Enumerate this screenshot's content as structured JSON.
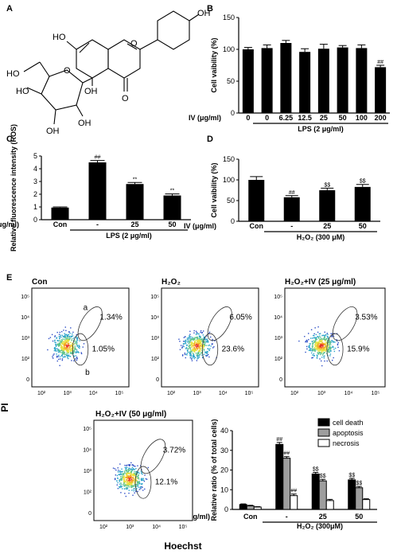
{
  "panels": {
    "A": "A",
    "B": "B",
    "C": "C",
    "D": "D",
    "E": "E"
  },
  "structure": {
    "labels": [
      "HO",
      "OH",
      "HO",
      "OH",
      "HO",
      "OH",
      "OH",
      "O",
      "O",
      "O"
    ]
  },
  "flow": {
    "title_con": "Con",
    "title_h2o2": "H₂O₂",
    "title_iv25": "H₂O₂+IV (25 μg/ml)",
    "title_iv50": "H₂O₂+IV (50 μg/ml)",
    "gate_a": "a",
    "gate_b": "b",
    "ticks": [
      "10⁵",
      "10⁴",
      "10³",
      "10²",
      "0",
      "10²",
      "10³",
      "10⁴",
      "10⁵"
    ],
    "pcts": {
      "con_a": "1.34%",
      "con_b": "1.05%",
      "h2o2_a": "6.05%",
      "h2o2_b": "23.6%",
      "iv25_a": "3.53%",
      "iv25_b": "15.9%",
      "iv50_a": "3.72%",
      "iv50_b": "12.1%"
    },
    "ylabel": "PI",
    "xlabel": "Hoechst"
  },
  "chart_data": [
    {
      "panel": "B",
      "type": "bar",
      "ylabel": "Cell vaibility (%)",
      "ylim": [
        0,
        150
      ],
      "yticks": [
        "0",
        "50",
        "100",
        "150"
      ],
      "row_label": "IV (μg/ml)",
      "categories": [
        "0",
        "0",
        "6.25",
        "12.5",
        "25",
        "50",
        "100",
        "200"
      ],
      "values": [
        100,
        102,
        110,
        96,
        101,
        103,
        102,
        72
      ],
      "errors": [
        3,
        5,
        4,
        5,
        7,
        3,
        5,
        3
      ],
      "annotations": [
        "",
        "",
        "",
        "",
        "",
        "",
        "",
        "##"
      ],
      "group_label": "LPS (2 μg/ml)"
    },
    {
      "panel": "C",
      "type": "bar",
      "ylabel": "Relative fluorescence intensity (ROS)",
      "ylim": [
        0,
        5
      ],
      "yticks": [
        "0",
        "1",
        "2",
        "3",
        "4",
        "5"
      ],
      "row_label": "IV (μg/ml)",
      "categories": [
        "Con",
        "-",
        "25",
        "50"
      ],
      "values": [
        0.95,
        4.5,
        2.8,
        1.9
      ],
      "errors": [
        0.05,
        0.15,
        0.12,
        0.12
      ],
      "annotations": [
        "",
        "##",
        "**",
        "**"
      ],
      "group_label": "LPS (2 μg/ml)"
    },
    {
      "panel": "D",
      "type": "bar",
      "ylabel": "Cell vaibility (%)",
      "ylim": [
        0,
        150
      ],
      "yticks": [
        "0",
        "50",
        "100",
        "150"
      ],
      "row_label": "IV (μg/ml)",
      "categories": [
        "Con",
        "-",
        "25",
        "50"
      ],
      "values": [
        100,
        58,
        75,
        83
      ],
      "errors": [
        8,
        4,
        5,
        6
      ],
      "annotations": [
        "",
        "##",
        "$$",
        "$$"
      ],
      "group_label": "H₂O₂ (300 μM)"
    },
    {
      "panel": "E",
      "type": "bar",
      "ylabel": "Relative ratio (% of total cells)",
      "ylim": [
        0,
        40
      ],
      "yticks": [
        "0",
        "10",
        "20",
        "30",
        "40"
      ],
      "row_label": "IV (μg/ml)",
      "categories": [
        "Con",
        "-",
        "25",
        "50"
      ],
      "series": [
        {
          "name": "cell death",
          "color": "#000000",
          "values": [
            2.5,
            33,
            18,
            15
          ],
          "errors": [
            0.3,
            1,
            0.8,
            0.8
          ],
          "annotations": [
            "",
            "##",
            "$$",
            "$$"
          ]
        },
        {
          "name": "apoptosis",
          "color": "#9e9e9e",
          "values": [
            1.8,
            26,
            14.5,
            11
          ],
          "errors": [
            0.3,
            0.8,
            0.8,
            0.7
          ],
          "annotations": [
            "",
            "##",
            "$$",
            "$$"
          ]
        },
        {
          "name": "necrosis",
          "color": "#ffffff",
          "values": [
            1.2,
            7,
            4.5,
            5
          ],
          "errors": [
            0.2,
            0.8,
            0.6,
            0.4
          ],
          "annotations": [
            "",
            "##",
            "",
            ""
          ]
        }
      ],
      "group_label": "H₂O₂ (300μM)"
    }
  ]
}
